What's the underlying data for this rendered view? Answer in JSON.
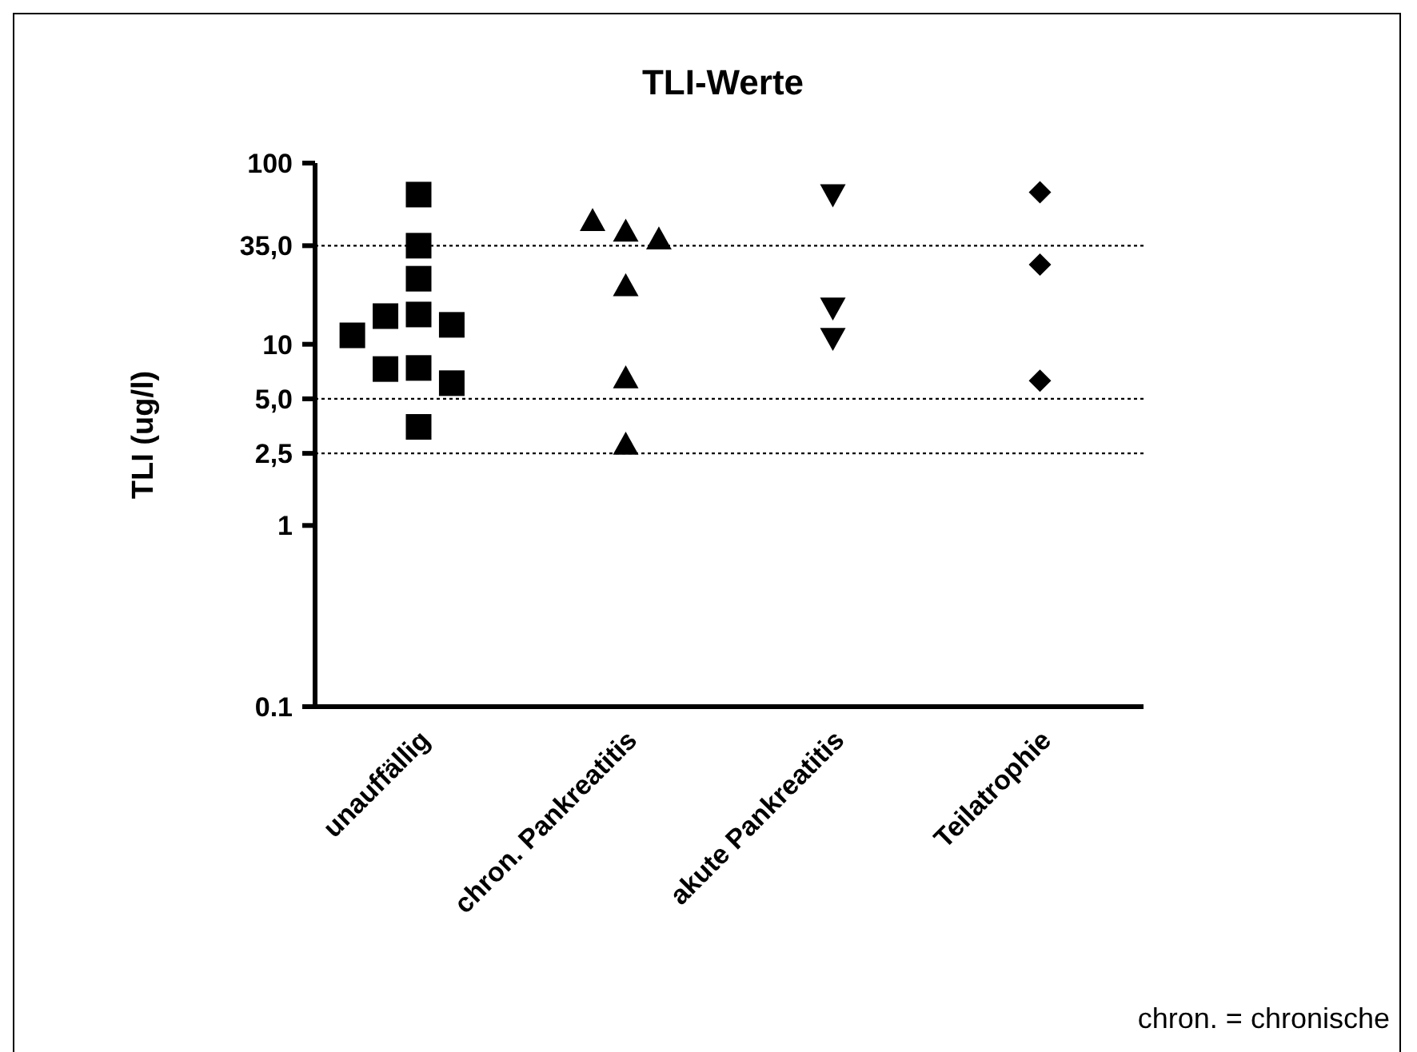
{
  "chart_data": {
    "type": "scatter",
    "title": "TLI-Werte",
    "ylabel": "TLI (ug/l)",
    "log": "y",
    "categories": [
      "unauffällig",
      "chron. Pankreatitis",
      "akute Pankreatitis",
      "Teilatrophie"
    ],
    "series": [
      {
        "color": "#000000",
        "marker": "square",
        "x": [
          "unauffällig",
          "unauffällig",
          "unauffällig",
          "unauffällig",
          "unauffällig",
          "unauffällig",
          "unauffällig",
          "unauffällig",
          "unauffällig",
          "unauffällig",
          "unauffällig"
        ],
        "values": [
          67,
          35,
          23,
          14.6,
          14.3,
          12.8,
          11.2,
          7.4,
          7.3,
          6.1,
          3.5
        ]
      },
      {
        "color": "#000000",
        "marker": "triangle",
        "x": [
          "chron. Pankreatitis",
          "chron. Pankreatitis",
          "chron. Pankreatitis",
          "chron. Pankreatitis",
          "chron. Pankreatitis",
          "chron. Pankreatitis"
        ],
        "values": [
          42,
          48,
          38,
          21,
          6.5,
          2.8
        ]
      },
      {
        "color": "#000000",
        "marker": "triangle-down",
        "x": [
          "akute Pankreatitis",
          "akute Pankreatitis",
          "akute Pankreatitis"
        ],
        "values": [
          67,
          15.9,
          10.8
        ]
      },
      {
        "color": "#000000",
        "marker": "diamond",
        "x": [
          "Teilatrophie",
          "Teilatrophie",
          "Teilatrophie"
        ],
        "values": [
          69,
          27.5,
          6.3
        ]
      }
    ],
    "ylim": [
      0.1,
      100
    ],
    "yticks": [
      {
        "value": 0.1,
        "label": "0.1"
      },
      1,
      {
        "value": 2.5,
        "label": "2,5"
      },
      {
        "value": 5,
        "label": "5,0"
      },
      10,
      {
        "value": 35,
        "label": "35,0"
      },
      100
    ],
    "ref_lines": [
      {
        "axis": "y",
        "value": 35,
        "line_style": "dotted"
      },
      {
        "axis": "y",
        "value": 5,
        "line_style": "dotted"
      },
      {
        "axis": "y",
        "value": 2.5,
        "line_style": "dotted"
      }
    ],
    "grid": false,
    "legend": false,
    "annotations": [
      "chron. = chronische"
    ]
  }
}
